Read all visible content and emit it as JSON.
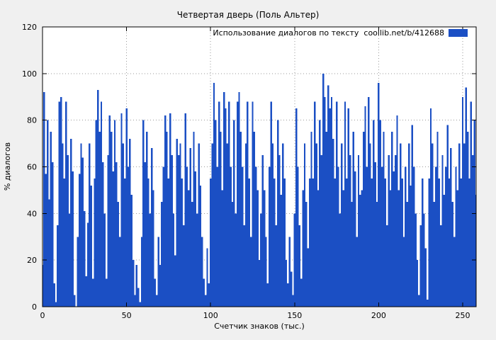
{
  "chart_data": {
    "type": "bar",
    "title": "Четвертая дверь (Поль Альтер)",
    "legend": "Использование диалогов по тексту  coollib.net/b/412688",
    "xlabel": "Счетчик знаков (тыс.)",
    "ylabel": "% диалогов",
    "xlim": [
      0,
      258
    ],
    "ylim": [
      0,
      120
    ],
    "xticks": [
      0,
      50,
      100,
      150,
      200,
      250
    ],
    "yticks": [
      0,
      20,
      40,
      60,
      80,
      100,
      120
    ],
    "grid": true,
    "legend_position": "top-right",
    "background": "#f0f0f0",
    "plot_background": "#ffffff",
    "bar_color": "#1b4fc4",
    "x_step": 1,
    "values": [
      18,
      92,
      57,
      80,
      46,
      75,
      62,
      10,
      2,
      35,
      88,
      90,
      70,
      55,
      88,
      65,
      40,
      72,
      58,
      5,
      0,
      30,
      57,
      70,
      64,
      41,
      13,
      36,
      70,
      52,
      12,
      55,
      80,
      93,
      75,
      88,
      62,
      40,
      12,
      65,
      82,
      75,
      58,
      80,
      62,
      45,
      30,
      83,
      70,
      55,
      85,
      60,
      72,
      48,
      20,
      5,
      18,
      8,
      2,
      30,
      80,
      62,
      75,
      55,
      40,
      68,
      50,
      12,
      5,
      30,
      18,
      45,
      60,
      82,
      75,
      55,
      83,
      65,
      40,
      22,
      72,
      65,
      70,
      55,
      35,
      83,
      60,
      50,
      68,
      45,
      75,
      58,
      40,
      70,
      52,
      30,
      12,
      5,
      25,
      10,
      55,
      70,
      96,
      80,
      60,
      88,
      75,
      50,
      92,
      85,
      70,
      88,
      60,
      45,
      80,
      40,
      88,
      92,
      75,
      60,
      35,
      70,
      88,
      55,
      30,
      88,
      75,
      60,
      50,
      20,
      40,
      65,
      50,
      30,
      10,
      60,
      88,
      70,
      55,
      35,
      80,
      65,
      48,
      70,
      55,
      20,
      10,
      30,
      15,
      5,
      40,
      85,
      60,
      35,
      12,
      50,
      70,
      45,
      25,
      55,
      75,
      55,
      88,
      70,
      50,
      80,
      65,
      100,
      90,
      75,
      95,
      85,
      90,
      72,
      55,
      88,
      60,
      40,
      70,
      50,
      88,
      55,
      85,
      65,
      45,
      75,
      58,
      30,
      65,
      48,
      50,
      75,
      86,
      60,
      90,
      70,
      55,
      80,
      62,
      45,
      96,
      80,
      60,
      75,
      55,
      35,
      65,
      50,
      75,
      58,
      65,
      82,
      50,
      70,
      55,
      30,
      60,
      45,
      70,
      52,
      78,
      60,
      40,
      20,
      5,
      35,
      55,
      40,
      25,
      3,
      55,
      85,
      70,
      45,
      60,
      75,
      55,
      35,
      65,
      48,
      60,
      78,
      55,
      68,
      45,
      30,
      60,
      50,
      70,
      55,
      90,
      70,
      94,
      75,
      55,
      88,
      65,
      80,
      48
    ]
  }
}
